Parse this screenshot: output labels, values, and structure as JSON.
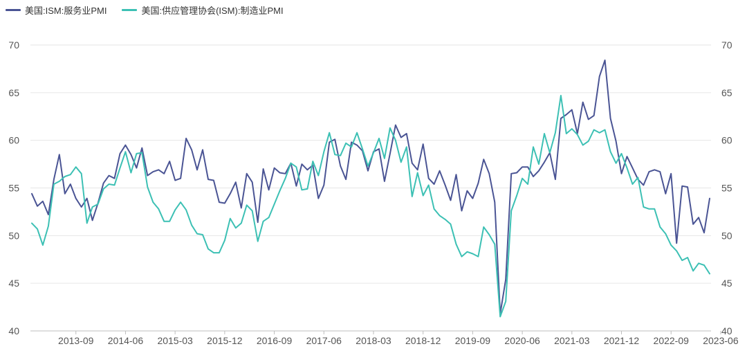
{
  "chart_data": {
    "type": "line",
    "title": "",
    "xlabel": "",
    "ylabel": "",
    "ylim": [
      40,
      70
    ],
    "y_ticks": [
      40,
      45,
      50,
      55,
      60,
      65,
      70
    ],
    "x_tick_labels": [
      "2013-09",
      "2014-06",
      "2015-03",
      "2015-12",
      "2016-09",
      "2017-06",
      "2018-03",
      "2018-12",
      "2019-09",
      "2020-06",
      "2021-03",
      "2021-12",
      "2022-09",
      "2023-06"
    ],
    "x_start": "2013-01",
    "grid": true,
    "legend_position": "top-left",
    "series": [
      {
        "name": "美国:ISM:服务业PMI",
        "color": "#4a5494",
        "values": [
          54.4,
          53.1,
          53.6,
          52.2,
          55.9,
          58.5,
          54.4,
          55.4,
          53.9,
          53.0,
          53.9,
          51.6,
          53.4,
          55.5,
          56.3,
          56.0,
          58.6,
          59.5,
          58.5,
          57.1,
          59.2,
          56.3,
          56.7,
          56.9,
          56.5,
          57.8,
          55.8,
          56.0,
          60.2,
          59.0,
          56.9,
          59.0,
          55.9,
          55.8,
          53.5,
          53.4,
          54.4,
          55.6,
          52.9,
          56.5,
          55.6,
          51.4,
          57.0,
          54.8,
          57.1,
          56.6,
          56.5,
          57.6,
          55.2,
          57.5,
          56.9,
          57.4,
          53.9,
          55.3,
          59.8,
          60.1,
          57.3,
          55.9,
          59.8,
          59.5,
          58.9,
          56.8,
          58.8,
          59.1,
          55.7,
          58.6,
          61.6,
          60.3,
          60.7,
          57.6,
          56.9,
          59.6,
          56.0,
          55.4,
          56.8,
          55.3,
          53.7,
          56.4,
          52.6,
          54.7,
          53.9,
          55.5,
          58.0,
          56.5,
          53.5,
          41.8,
          45.4,
          56.5,
          56.6,
          57.2,
          57.2,
          56.2,
          56.8,
          57.7,
          58.7,
          55.9,
          62.3,
          62.7,
          63.2,
          60.7,
          64.0,
          62.2,
          62.6,
          66.7,
          68.4,
          62.3,
          59.9,
          56.5,
          58.3,
          57.1,
          55.9,
          55.3,
          56.7,
          56.9,
          56.7,
          54.4,
          56.5,
          49.2,
          55.2,
          55.1,
          51.2,
          51.9,
          50.3,
          53.9
        ],
        "last_label": "2023-06"
      },
      {
        "name": "美国:供应管理协会(ISM):制造业PMI",
        "color": "#3cc0b4",
        "values": [
          51.3,
          50.7,
          49.0,
          51.0,
          55.4,
          55.7,
          56.2,
          56.4,
          57.2,
          56.5,
          51.3,
          53.0,
          53.3,
          54.9,
          55.4,
          55.3,
          57.1,
          58.8,
          56.6,
          58.6,
          58.7,
          55.1,
          53.5,
          52.8,
          51.5,
          51.5,
          52.7,
          53.5,
          52.7,
          51.1,
          50.2,
          50.1,
          48.6,
          48.2,
          48.2,
          49.5,
          51.8,
          50.8,
          51.3,
          53.2,
          52.6,
          49.4,
          51.5,
          51.9,
          53.3,
          54.7,
          56.0,
          57.6,
          57.2,
          54.8,
          54.9,
          57.8,
          56.3,
          58.8,
          60.8,
          58.5,
          58.4,
          59.7,
          59.3,
          60.8,
          59.1,
          57.3,
          58.7,
          60.2,
          58.1,
          61.3,
          60.0,
          57.7,
          59.3,
          54.1,
          56.6,
          54.2,
          55.3,
          52.8,
          52.1,
          51.7,
          51.2,
          49.1,
          47.8,
          48.3,
          48.1,
          47.8,
          50.9,
          50.1,
          49.1,
          41.5,
          43.1,
          52.6,
          54.2,
          56.0,
          55.4,
          59.3,
          57.5,
          60.7,
          58.7,
          60.8,
          64.7,
          60.7,
          61.2,
          60.6,
          59.5,
          59.9,
          61.1,
          60.8,
          61.1,
          58.8,
          57.6,
          58.6,
          57.1,
          55.4,
          56.1,
          53.0,
          52.8,
          52.8,
          50.9,
          50.2,
          49.0,
          48.4,
          47.4,
          47.7,
          46.3,
          47.1,
          46.9,
          46.0
        ],
        "last_label": "2023-06"
      }
    ]
  }
}
